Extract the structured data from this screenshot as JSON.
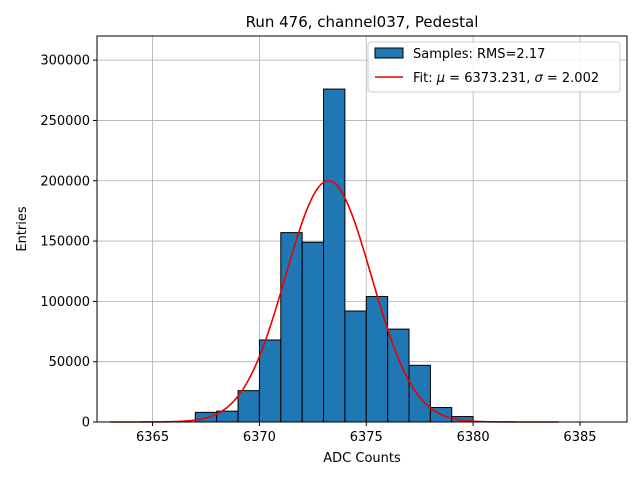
{
  "chart_data": {
    "type": "bar",
    "title": "Run 476, channel037, Pedestal",
    "xlabel": "ADC Counts",
    "ylabel": "Entries",
    "xlim": [
      6362.4,
      6387.2
    ],
    "ylim": [
      0,
      320000
    ],
    "xticks": [
      6365,
      6370,
      6375,
      6380,
      6385
    ],
    "yticks": [
      0,
      50000,
      100000,
      150000,
      200000,
      250000,
      300000
    ],
    "grid": true,
    "legend_position": "top-right",
    "bin_width": 1,
    "bins": [
      {
        "x": 6367,
        "value": 8000
      },
      {
        "x": 6368,
        "value": 9000
      },
      {
        "x": 6369,
        "value": 26000
      },
      {
        "x": 6370,
        "value": 68000
      },
      {
        "x": 6371,
        "value": 157000
      },
      {
        "x": 6372,
        "value": 149000
      },
      {
        "x": 6373,
        "value": 276000
      },
      {
        "x": 6374,
        "value": 92000
      },
      {
        "x": 6375,
        "value": 104000
      },
      {
        "x": 6376,
        "value": 77000
      },
      {
        "x": 6377,
        "value": 47000
      },
      {
        "x": 6378,
        "value": 12000
      },
      {
        "x": 6379,
        "value": 4500
      }
    ],
    "fit": {
      "mu": 6373.231,
      "sigma": 2.002,
      "amplitude": 200000,
      "x_range": [
        6363,
        6384
      ]
    },
    "legend": {
      "hist_label": "Samples: RMS=2.17",
      "fit_prefix": "Fit: ",
      "fit_mu_symbol": "μ",
      "fit_mu_text": " = 6373.231, ",
      "fit_sigma_symbol": "σ",
      "fit_sigma_text": " = 2.002"
    },
    "colors": {
      "bar_fill": "#1f77b4",
      "bar_edge": "#000000",
      "fit_line": "#ee0000",
      "grid": "#b0b0b0"
    }
  }
}
